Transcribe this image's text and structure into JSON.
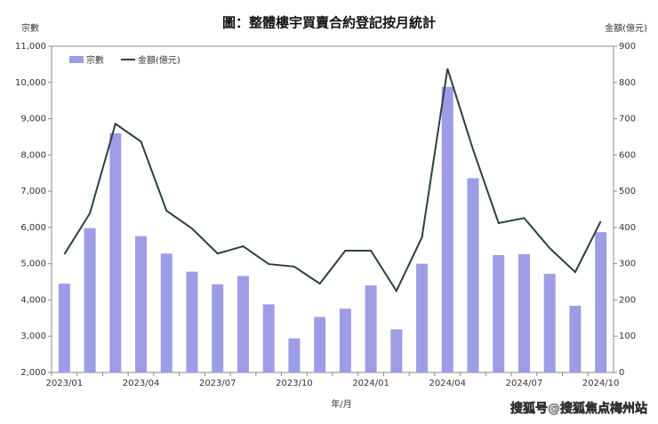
{
  "chart_data": {
    "type": "bar_line",
    "title": "圖：整體樓宇買賣合約登記按月統計",
    "y_label": "宗數",
    "y2_label": "金額(億元)",
    "x_label": "年/月",
    "categories": [
      "2023/01",
      null,
      null,
      "2023/04",
      null,
      null,
      "2023/07",
      null,
      null,
      "2023/10",
      null,
      null,
      "2024/01",
      null,
      null,
      "2024/04",
      null,
      null,
      "2024/07",
      null,
      null,
      "2024/10"
    ],
    "series": [
      {
        "name": "宗數",
        "type": "bar",
        "color": "#9d9de6",
        "values": [
          4450,
          5980,
          8600,
          5760,
          5280,
          4780,
          4430,
          4660,
          3880,
          2940,
          3530,
          3760,
          4400,
          3190,
          5000,
          9880,
          7360,
          5240,
          5260,
          4720,
          3840,
          5870
        ]
      },
      {
        "name": "金額(億元)",
        "type": "line",
        "axis": "y2",
        "color": "#2b4040",
        "values": [
          326,
          439,
          686,
          637,
          446,
          397,
          328,
          348,
          299,
          292,
          245,
          336,
          336,
          225,
          373,
          838,
          615,
          412,
          426,
          343,
          277,
          417
        ]
      }
    ],
    "ylim": [
      2000,
      11000
    ],
    "yticks": [
      {
        "value": 2000,
        "label": "2,000"
      },
      {
        "value": 3000,
        "label": "3,000"
      },
      {
        "value": 4000,
        "label": "4,000"
      },
      {
        "value": 5000,
        "label": "5,000"
      },
      {
        "value": 6000,
        "label": "6,000"
      },
      {
        "value": 7000,
        "label": "7,000"
      },
      {
        "value": 8000,
        "label": "8,000"
      },
      {
        "value": 9000,
        "label": "9,000"
      },
      {
        "value": 10000,
        "label": "10,000"
      },
      {
        "value": 11000,
        "label": "11,000"
      }
    ],
    "y2lim": [
      0,
      900
    ],
    "y2ticks": [
      0,
      100,
      200,
      300,
      400,
      500,
      600,
      700,
      800,
      900
    ],
    "legend": "top-left",
    "watermark": "搜狐号@搜狐焦点梅州站"
  }
}
